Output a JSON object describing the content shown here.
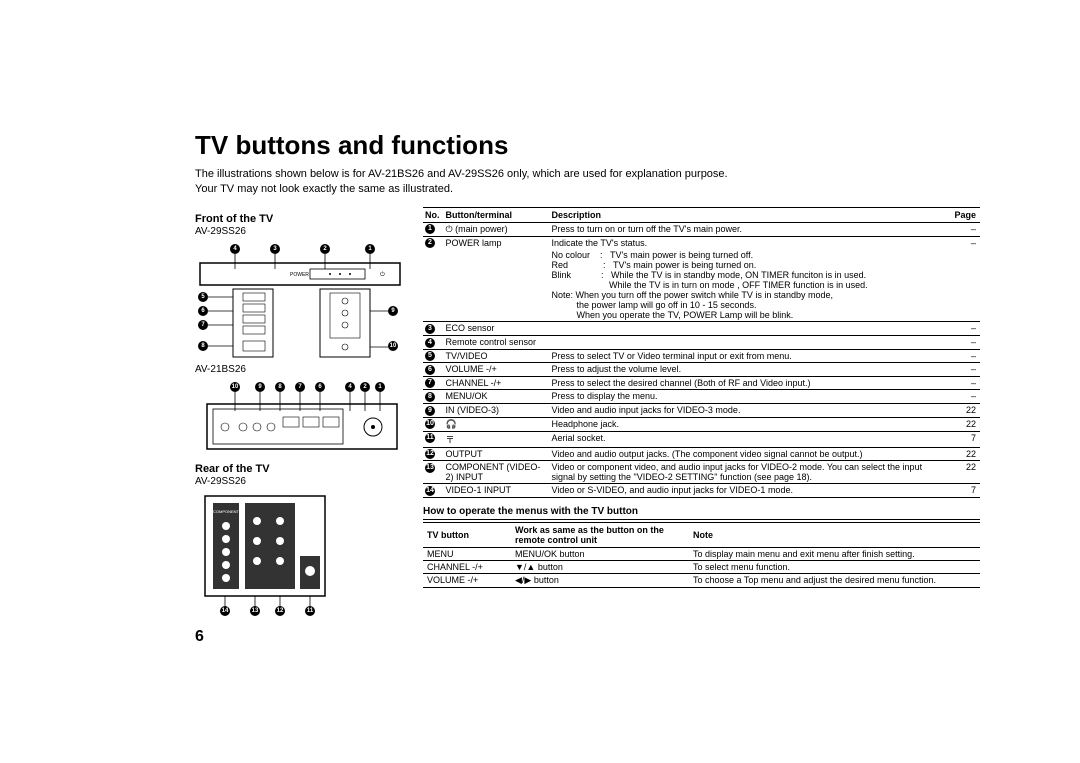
{
  "title": "TV buttons and functions",
  "intro_line1": "The illustrations shown below is for AV-21BS26 and AV-29SS26 only, which are used for explanation purpose.",
  "intro_line2": "Your TV may not look exactly the same as illustrated.",
  "page_number": "6",
  "left": {
    "front_heading": "Front of the TV",
    "model1": "AV-29SS26",
    "model2": "AV-21BS26",
    "rear_heading": "Rear of the TV",
    "model3": "AV-29SS26"
  },
  "table1": {
    "headers": {
      "no": "No.",
      "bt": "Button/terminal",
      "desc": "Description",
      "page": "Page"
    },
    "rows": [
      {
        "n": "1",
        "bt": "⏻ (main power)",
        "desc": "Press to turn on or turn off the TV's main power.",
        "page": "–"
      },
      {
        "n": "2",
        "bt": "POWER lamp",
        "desc": "Indicate the TV's status.",
        "page": "–",
        "extra": [
          "No colour    :   TV's main power is being turned off.",
          "Red              :   TV's main power is being turned on.",
          "Blink            :   While the TV is in standby mode, ON TIMER funciton is in used.",
          "                       While the TV is in turn on mode , OFF TIMER function is in used.",
          "Note: When you turn off the power switch while TV is in standby mode,",
          "          the power lamp will go off in 10 - 15 seconds.",
          "          When you operate the TV, POWER Lamp will be blink."
        ]
      },
      {
        "n": "3",
        "bt": "ECO sensor",
        "desc": "",
        "page": "–"
      },
      {
        "n": "4",
        "bt": "Remote control sensor",
        "desc": "",
        "page": "–"
      },
      {
        "n": "5",
        "bt": "TV/VIDEO",
        "desc": "Press to select TV or Video terminal input or exit from menu.",
        "page": "–"
      },
      {
        "n": "6",
        "bt": "VOLUME -/+",
        "desc": "Press to adjust the volume level.",
        "page": "–"
      },
      {
        "n": "7",
        "bt": "CHANNEL -/+",
        "desc": "Press to select the desired channel (Both of RF and Video input.)",
        "page": "–"
      },
      {
        "n": "8",
        "bt": "MENU/OK",
        "desc": "Press to display the menu.",
        "page": "–"
      },
      {
        "n": "9",
        "bt": "IN (VIDEO-3)",
        "desc": "Video and audio input jacks for VIDEO-3 mode.",
        "page": "22"
      },
      {
        "n": "10",
        "bt": "🎧",
        "desc": "Headphone jack.",
        "page": "22"
      },
      {
        "n": "11",
        "bt": "〒",
        "desc": "Aerial socket.",
        "page": "7"
      },
      {
        "n": "12",
        "bt": "OUTPUT",
        "desc": "Video and audio output jacks. (The component video signal cannot be output.)",
        "page": "22"
      },
      {
        "n": "13",
        "bt": "COMPONENT (VIDEO-2) INPUT",
        "desc": "Video or component video, and audio input jacks for VIDEO-2 mode. You can select the input signal by setting the \"VIDEO-2 SETTING\" function (see page 18).",
        "page": "22"
      },
      {
        "n": "14",
        "bt": "VIDEO-1 INPUT",
        "desc": "Video or S-VIDEO, and audio input jacks for VIDEO-1 mode.",
        "page": "7"
      }
    ]
  },
  "section2_title": "How to operate the menus with the TV button",
  "table2": {
    "headers": {
      "a": "TV button",
      "b": "Work as same as the button on the remote control unit",
      "c": "Note"
    },
    "rows": [
      {
        "a": "MENU",
        "b": "MENU/OK button",
        "c": "To display main menu and exit menu after finish setting."
      },
      {
        "a": "CHANNEL -/+",
        "b": "▼/▲ button",
        "c": "To select menu function."
      },
      {
        "a": "VOLUME -/+",
        "b": "◀/▶ button",
        "c": "To choose a Top menu and adjust the desired menu function."
      }
    ]
  }
}
